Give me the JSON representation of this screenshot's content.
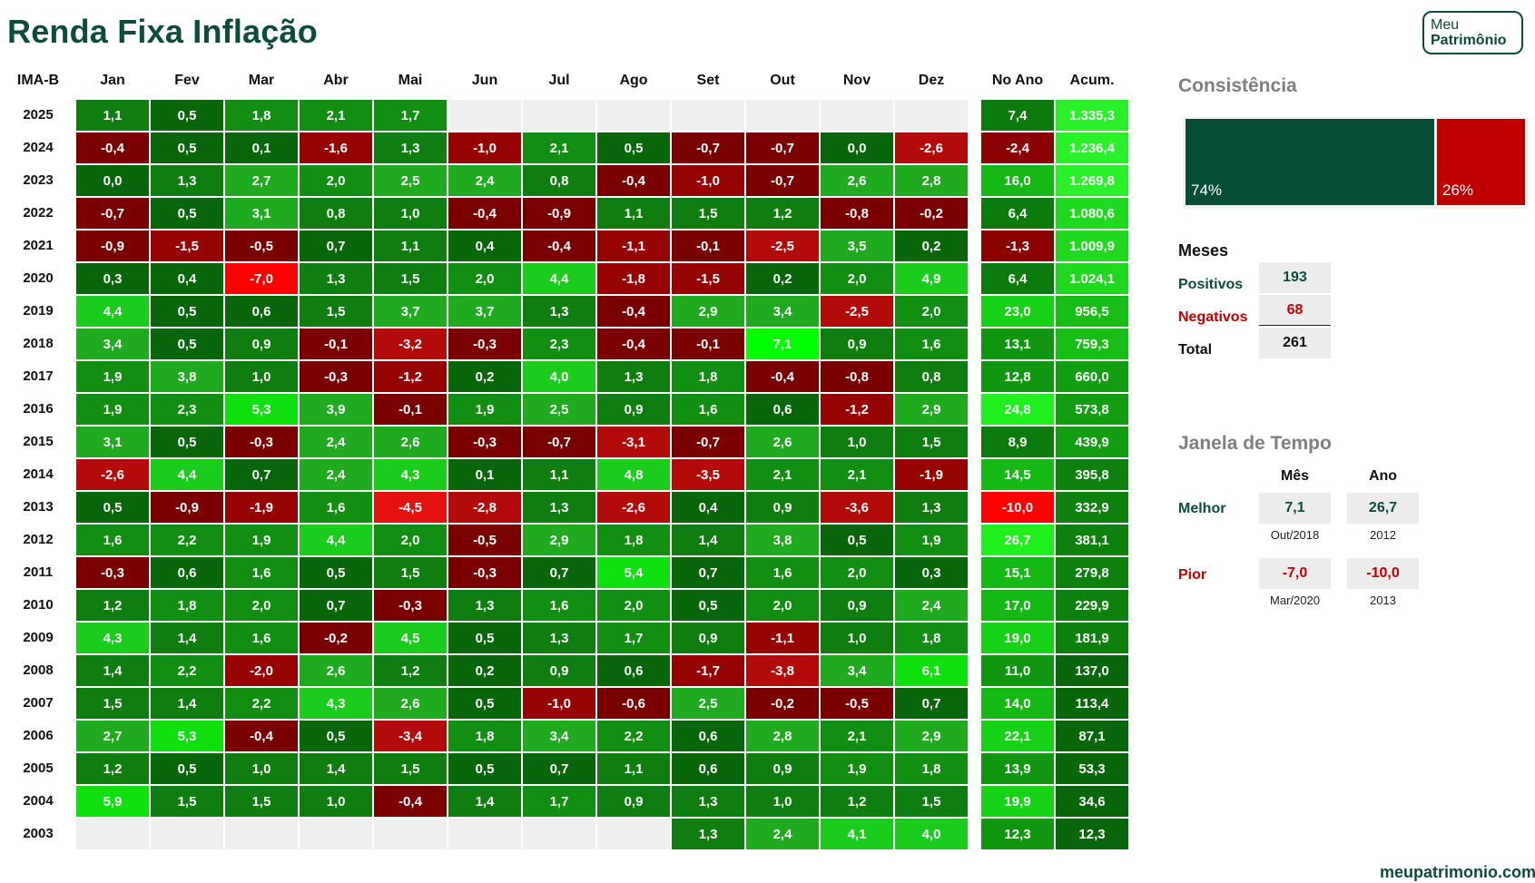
{
  "title": "Renda Fixa Inflação",
  "logo": {
    "line1": "Meu",
    "line2": "Patrimônio"
  },
  "footer": "meupatrimonio.com",
  "chart_data": {
    "type": "heatmap",
    "index_label": "IMA-B",
    "months": [
      "Jan",
      "Fev",
      "Mar",
      "Abr",
      "Mai",
      "Jun",
      "Jul",
      "Ago",
      "Set",
      "Out",
      "Nov",
      "Dez"
    ],
    "extra_columns": [
      "No Ano",
      "Acum."
    ],
    "rows": [
      {
        "year": "2025",
        "values": [
          "1,1",
          "0,5",
          "1,8",
          "2,1",
          "1,7",
          null,
          null,
          null,
          null,
          null,
          null,
          null
        ],
        "no_ano": "7,4",
        "acum": "1.335,3"
      },
      {
        "year": "2024",
        "values": [
          "-0,4",
          "0,5",
          "0,1",
          "-1,6",
          "1,3",
          "-1,0",
          "2,1",
          "0,5",
          "-0,7",
          "-0,7",
          "0,0",
          "-2,6"
        ],
        "no_ano": "-2,4",
        "acum": "1.236,4"
      },
      {
        "year": "2023",
        "values": [
          "0,0",
          "1,3",
          "2,7",
          "2,0",
          "2,5",
          "2,4",
          "0,8",
          "-0,4",
          "-1,0",
          "-0,7",
          "2,6",
          "2,8"
        ],
        "no_ano": "16,0",
        "acum": "1.269,8"
      },
      {
        "year": "2022",
        "values": [
          "-0,7",
          "0,5",
          "3,1",
          "0,8",
          "1,0",
          "-0,4",
          "-0,9",
          "1,1",
          "1,5",
          "1,2",
          "-0,8",
          "-0,2"
        ],
        "no_ano": "6,4",
        "acum": "1.080,6"
      },
      {
        "year": "2021",
        "values": [
          "-0,9",
          "-1,5",
          "-0,5",
          "0,7",
          "1,1",
          "0,4",
          "-0,4",
          "-1,1",
          "-0,1",
          "-2,5",
          "3,5",
          "0,2"
        ],
        "no_ano": "-1,3",
        "acum": "1.009,9"
      },
      {
        "year": "2020",
        "values": [
          "0,3",
          "0,4",
          "-7,0",
          "1,3",
          "1,5",
          "2,0",
          "4,4",
          "-1,8",
          "-1,5",
          "0,2",
          "2,0",
          "4,9"
        ],
        "no_ano": "6,4",
        "acum": "1.024,1"
      },
      {
        "year": "2019",
        "values": [
          "4,4",
          "0,5",
          "0,6",
          "1,5",
          "3,7",
          "3,7",
          "1,3",
          "-0,4",
          "2,9",
          "3,4",
          "-2,5",
          "2,0"
        ],
        "no_ano": "23,0",
        "acum": "956,5"
      },
      {
        "year": "2018",
        "values": [
          "3,4",
          "0,5",
          "0,9",
          "-0,1",
          "-3,2",
          "-0,3",
          "2,3",
          "-0,4",
          "-0,1",
          "7,1",
          "0,9",
          "1,6"
        ],
        "no_ano": "13,1",
        "acum": "759,3"
      },
      {
        "year": "2017",
        "values": [
          "1,9",
          "3,8",
          "1,0",
          "-0,3",
          "-1,2",
          "0,2",
          "4,0",
          "1,3",
          "1,8",
          "-0,4",
          "-0,8",
          "0,8"
        ],
        "no_ano": "12,8",
        "acum": "660,0"
      },
      {
        "year": "2016",
        "values": [
          "1,9",
          "2,3",
          "5,3",
          "3,9",
          "-0,1",
          "1,9",
          "2,5",
          "0,9",
          "1,6",
          "0,6",
          "-1,2",
          "2,9"
        ],
        "no_ano": "24,8",
        "acum": "573,8"
      },
      {
        "year": "2015",
        "values": [
          "3,1",
          "0,5",
          "-0,3",
          "2,4",
          "2,6",
          "-0,3",
          "-0,7",
          "-3,1",
          "-0,7",
          "2,6",
          "1,0",
          "1,5"
        ],
        "no_ano": "8,9",
        "acum": "439,9"
      },
      {
        "year": "2014",
        "values": [
          "-2,6",
          "4,4",
          "0,7",
          "2,4",
          "4,3",
          "0,1",
          "1,1",
          "4,8",
          "-3,5",
          "2,1",
          "2,1",
          "-1,9"
        ],
        "no_ano": "14,5",
        "acum": "395,8"
      },
      {
        "year": "2013",
        "values": [
          "0,5",
          "-0,9",
          "-1,9",
          "1,6",
          "-4,5",
          "-2,8",
          "1,3",
          "-2,6",
          "0,4",
          "0,9",
          "-3,6",
          "1,3"
        ],
        "no_ano": "-10,0",
        "acum": "332,9"
      },
      {
        "year": "2012",
        "values": [
          "1,6",
          "2,2",
          "1,9",
          "4,4",
          "2,0",
          "-0,5",
          "2,9",
          "1,8",
          "1,4",
          "3,8",
          "0,5",
          "1,9"
        ],
        "no_ano": "26,7",
        "acum": "381,1"
      },
      {
        "year": "2011",
        "values": [
          "-0,3",
          "0,6",
          "1,6",
          "0,5",
          "1,5",
          "-0,3",
          "0,7",
          "5,4",
          "0,7",
          "1,6",
          "2,0",
          "0,3"
        ],
        "no_ano": "15,1",
        "acum": "279,8"
      },
      {
        "year": "2010",
        "values": [
          "1,2",
          "1,8",
          "2,0",
          "0,7",
          "-0,3",
          "1,3",
          "1,6",
          "2,0",
          "0,5",
          "2,0",
          "0,9",
          "2,4"
        ],
        "no_ano": "17,0",
        "acum": "229,9"
      },
      {
        "year": "2009",
        "values": [
          "4,3",
          "1,4",
          "1,6",
          "-0,2",
          "4,5",
          "0,5",
          "1,3",
          "1,7",
          "0,9",
          "-1,1",
          "1,0",
          "1,8"
        ],
        "no_ano": "19,0",
        "acum": "181,9"
      },
      {
        "year": "2008",
        "values": [
          "1,4",
          "2,2",
          "-2,0",
          "2,6",
          "1,2",
          "0,2",
          "0,9",
          "0,6",
          "-1,7",
          "-3,8",
          "3,4",
          "6,1"
        ],
        "no_ano": "11,0",
        "acum": "137,0"
      },
      {
        "year": "2007",
        "values": [
          "1,5",
          "1,4",
          "2,2",
          "4,3",
          "2,6",
          "0,5",
          "-1,0",
          "-0,6",
          "2,5",
          "-0,2",
          "-0,5",
          "0,7"
        ],
        "no_ano": "14,0",
        "acum": "113,4"
      },
      {
        "year": "2006",
        "values": [
          "2,7",
          "5,3",
          "-0,4",
          "0,5",
          "-3,4",
          "1,8",
          "3,4",
          "2,2",
          "0,6",
          "2,8",
          "2,1",
          "2,9"
        ],
        "no_ano": "22,1",
        "acum": "87,1"
      },
      {
        "year": "2005",
        "values": [
          "1,2",
          "0,5",
          "1,0",
          "1,4",
          "1,5",
          "0,5",
          "0,7",
          "1,1",
          "0,6",
          "0,9",
          "1,9",
          "1,8"
        ],
        "no_ano": "13,9",
        "acum": "53,3"
      },
      {
        "year": "2004",
        "values": [
          "5,9",
          "1,5",
          "1,5",
          "1,0",
          "-0,4",
          "1,4",
          "1,7",
          "0,9",
          "1,3",
          "1,0",
          "1,2",
          "1,5"
        ],
        "no_ano": "19,9",
        "acum": "34,6"
      },
      {
        "year": "2003",
        "values": [
          null,
          null,
          null,
          null,
          null,
          null,
          null,
          null,
          "1,3",
          "2,4",
          "4,1",
          "4,0"
        ],
        "no_ano": "12,3",
        "acum": "12,3"
      }
    ]
  },
  "consistencia": {
    "title": "Consistência",
    "positive_pct": "74%",
    "negative_pct": "26%",
    "positive_share": 0.74,
    "positive_color": "#054d36",
    "negative_color": "#c00000"
  },
  "meses": {
    "title": "Meses",
    "positivos_label": "Positivos",
    "positivos": "193",
    "negativos_label": "Negativos",
    "negativos": "68",
    "total_label": "Total",
    "total": "261"
  },
  "janela": {
    "title": "Janela de Tempo",
    "col_mes": "Mês",
    "col_ano": "Ano",
    "melhor_label": "Melhor",
    "melhor_mes": "7,1",
    "melhor_mes_ref": "Out/2018",
    "melhor_ano": "26,7",
    "melhor_ano_ref": "2012",
    "pior_label": "Pior",
    "pior_mes": "-7,0",
    "pior_mes_ref": "Mar/2020",
    "pior_ano": "-10,0",
    "pior_ano_ref": "2013"
  }
}
